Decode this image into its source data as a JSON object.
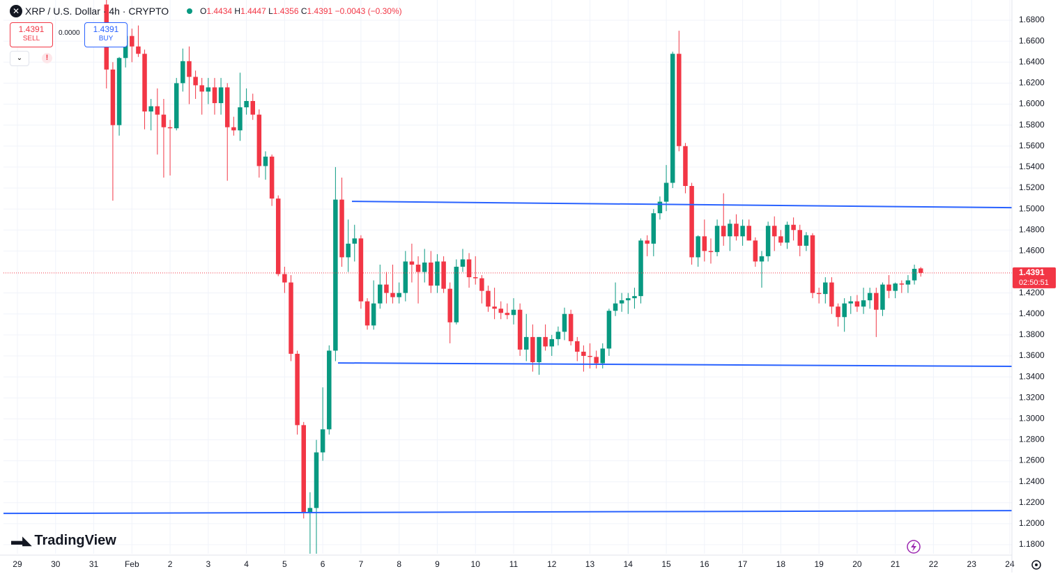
{
  "header": {
    "symbol": "XRP / U.S. Dollar · 4h · CRYPTO",
    "open_label": "O",
    "open": "1.4434",
    "high_label": "H",
    "high": "1.4447",
    "low_label": "L",
    "low": "1.4356",
    "close_label": "C",
    "close": "1.4391",
    "change": "−0.0043 (−0.30%)"
  },
  "trade": {
    "sell_price": "1.4391",
    "sell_label": "SELL",
    "spread": "0.0000",
    "buy_price": "1.4391",
    "buy_label": "BUY"
  },
  "logo": "TradingView",
  "chart_data": {
    "type": "candlestick",
    "x": [
      31.333,
      31.5,
      31.667,
      31.833,
      32,
      32.167,
      32.333,
      32.5,
      32.667,
      32.833,
      33,
      33.167,
      33.333,
      33.5,
      33.667,
      33.833,
      34,
      34.167,
      34.333,
      34.5,
      34.667,
      34.833,
      35,
      35.167,
      35.333,
      35.5,
      35.667,
      35.833,
      36,
      36.167,
      36.333,
      36.5,
      36.667,
      36.833,
      37,
      37.167,
      37.333,
      37.5,
      37.667,
      37.833,
      38,
      38.167,
      38.333,
      38.5,
      38.667,
      38.833,
      39,
      39.167,
      39.333,
      39.5,
      39.667,
      39.833,
      40,
      40.167,
      40.333,
      40.5,
      40.667,
      40.833,
      41,
      41.167,
      41.333,
      41.5,
      41.667,
      41.833,
      42,
      42.167,
      42.333,
      42.5,
      42.667,
      42.833,
      43,
      43.167,
      43.333,
      43.5,
      43.667,
      43.833,
      44,
      44.167,
      44.333,
      44.5,
      44.667,
      44.833,
      45,
      45.167,
      45.333,
      45.5,
      45.667,
      45.833,
      46,
      46.167,
      46.333,
      46.5,
      46.667,
      46.833,
      47,
      47.167,
      47.333,
      47.5,
      47.667,
      47.833,
      48,
      48.167,
      48.333,
      48.5,
      48.667,
      48.833,
      49,
      49.167,
      49.333,
      49.5,
      49.667,
      49.833,
      50,
      50.167,
      50.333,
      50.5,
      50.667,
      50.833,
      51,
      51.167,
      51.333,
      51.5,
      51.667,
      51.833,
      52,
      52.167,
      52.333,
      52.5,
      52.667
    ],
    "open": [
      1.695,
      1.633,
      1.58,
      1.644,
      1.665,
      1.655,
      1.648,
      1.593,
      1.598,
      1.59,
      1.578,
      1.577,
      1.62,
      1.641,
      1.626,
      1.618,
      1.612,
      1.616,
      1.601,
      1.616,
      1.578,
      1.575,
      1.597,
      1.603,
      1.59,
      1.541,
      1.55,
      1.51,
      1.438,
      1.43,
      1.362,
      1.294,
      1.21,
      1.215,
      1.268,
      1.29,
      1.365,
      1.509,
      1.454,
      1.467,
      1.472,
      1.412,
      1.389,
      1.41,
      1.428,
      1.42,
      1.416,
      1.42,
      1.45,
      1.447,
      1.44,
      1.449,
      1.427,
      1.45,
      1.424,
      1.392,
      1.445,
      1.452,
      1.435,
      1.434,
      1.422,
      1.407,
      1.405,
      1.401,
      1.399,
      1.404,
      1.366,
      1.378,
      1.354,
      1.378,
      1.369,
      1.376,
      1.383,
      1.4,
      1.374,
      1.364,
      1.36,
      1.359,
      1.353,
      1.367,
      1.403,
      1.41,
      1.413,
      1.415,
      1.417,
      1.47,
      1.467,
      1.496,
      1.507,
      1.525,
      1.648,
      1.56,
      1.522,
      1.454,
      1.474,
      1.46,
      1.459,
      1.484,
      1.474,
      1.486,
      1.474,
      1.484,
      1.47,
      1.45,
      1.455,
      1.484,
      1.474,
      1.468,
      1.485,
      1.48,
      1.465,
      1.475,
      1.42,
      1.419,
      1.43,
      1.407,
      1.397,
      1.41,
      1.412,
      1.407,
      1.413,
      1.42,
      1.404,
      1.428,
      1.422,
      1.429,
      1.428,
      1.432,
      1.4434
    ],
    "high": [
      1.71,
      1.64,
      1.645,
      1.674,
      1.672,
      1.675,
      1.652,
      1.605,
      1.615,
      1.605,
      1.585,
      1.625,
      1.653,
      1.655,
      1.632,
      1.625,
      1.625,
      1.625,
      1.625,
      1.62,
      1.588,
      1.63,
      1.615,
      1.61,
      1.595,
      1.555,
      1.552,
      1.513,
      1.445,
      1.437,
      1.365,
      1.297,
      1.23,
      1.28,
      1.33,
      1.37,
      1.54,
      1.53,
      1.49,
      1.485,
      1.475,
      1.415,
      1.432,
      1.447,
      1.44,
      1.447,
      1.43,
      1.46,
      1.467,
      1.455,
      1.462,
      1.46,
      1.457,
      1.455,
      1.43,
      1.452,
      1.462,
      1.458,
      1.455,
      1.437,
      1.427,
      1.425,
      1.412,
      1.41,
      1.415,
      1.41,
      1.4,
      1.39,
      1.378,
      1.39,
      1.38,
      1.388,
      1.406,
      1.404,
      1.378,
      1.37,
      1.372,
      1.365,
      1.372,
      1.405,
      1.43,
      1.42,
      1.42,
      1.425,
      1.472,
      1.475,
      1.5,
      1.512,
      1.542,
      1.65,
      1.67,
      1.563,
      1.525,
      1.475,
      1.49,
      1.472,
      1.49,
      1.515,
      1.49,
      1.495,
      1.49,
      1.49,
      1.473,
      1.46,
      1.488,
      1.493,
      1.48,
      1.488,
      1.492,
      1.485,
      1.478,
      1.477,
      1.425,
      1.435,
      1.435,
      1.41,
      1.415,
      1.417,
      1.418,
      1.425,
      1.425,
      1.425,
      1.43,
      1.437,
      1.43,
      1.432,
      1.437,
      1.447,
      1.4447
    ],
    "low": [
      1.615,
      1.508,
      1.57,
      1.635,
      1.64,
      1.645,
      1.576,
      1.575,
      1.552,
      1.53,
      1.532,
      1.575,
      1.612,
      1.6,
      1.605,
      1.59,
      1.6,
      1.59,
      1.59,
      1.527,
      1.57,
      1.565,
      1.59,
      1.585,
      1.53,
      1.528,
      1.503,
      1.436,
      1.42,
      1.355,
      1.285,
      1.205,
      1.17,
      1.168,
      1.26,
      1.285,
      1.355,
      1.445,
      1.44,
      1.45,
      1.405,
      1.385,
      1.385,
      1.405,
      1.41,
      1.41,
      1.41,
      1.412,
      1.43,
      1.41,
      1.43,
      1.42,
      1.42,
      1.42,
      1.372,
      1.39,
      1.44,
      1.425,
      1.428,
      1.41,
      1.402,
      1.395,
      1.395,
      1.395,
      1.39,
      1.36,
      1.355,
      1.345,
      1.342,
      1.365,
      1.36,
      1.37,
      1.375,
      1.37,
      1.355,
      1.345,
      1.348,
      1.348,
      1.348,
      1.36,
      1.398,
      1.402,
      1.4,
      1.405,
      1.41,
      1.455,
      1.455,
      1.49,
      1.498,
      1.52,
      1.555,
      1.515,
      1.447,
      1.445,
      1.45,
      1.448,
      1.455,
      1.465,
      1.46,
      1.47,
      1.465,
      1.47,
      1.445,
      1.425,
      1.45,
      1.46,
      1.465,
      1.462,
      1.47,
      1.455,
      1.46,
      1.415,
      1.41,
      1.41,
      1.4,
      1.388,
      1.383,
      1.4,
      1.402,
      1.4,
      1.405,
      1.378,
      1.398,
      1.415,
      1.415,
      1.42,
      1.42,
      1.428,
      1.4356
    ],
    "close": [
      1.633,
      1.58,
      1.644,
      1.665,
      1.655,
      1.648,
      1.593,
      1.598,
      1.59,
      1.578,
      1.577,
      1.62,
      1.641,
      1.626,
      1.618,
      1.612,
      1.616,
      1.601,
      1.616,
      1.578,
      1.575,
      1.597,
      1.603,
      1.59,
      1.541,
      1.55,
      1.51,
      1.438,
      1.43,
      1.362,
      1.294,
      1.21,
      1.215,
      1.268,
      1.29,
      1.365,
      1.509,
      1.454,
      1.467,
      1.472,
      1.412,
      1.389,
      1.41,
      1.428,
      1.42,
      1.416,
      1.42,
      1.45,
      1.447,
      1.44,
      1.449,
      1.427,
      1.45,
      1.424,
      1.392,
      1.445,
      1.452,
      1.435,
      1.434,
      1.422,
      1.407,
      1.405,
      1.401,
      1.399,
      1.404,
      1.366,
      1.378,
      1.354,
      1.378,
      1.369,
      1.376,
      1.383,
      1.4,
      1.374,
      1.364,
      1.36,
      1.359,
      1.353,
      1.367,
      1.403,
      1.41,
      1.413,
      1.415,
      1.417,
      1.47,
      1.467,
      1.496,
      1.507,
      1.525,
      1.648,
      1.56,
      1.522,
      1.454,
      1.474,
      1.46,
      1.459,
      1.484,
      1.474,
      1.486,
      1.474,
      1.484,
      1.47,
      1.45,
      1.455,
      1.484,
      1.474,
      1.468,
      1.485,
      1.48,
      1.465,
      1.475,
      1.42,
      1.419,
      1.43,
      1.407,
      1.397,
      1.41,
      1.412,
      1.407,
      1.413,
      1.42,
      1.404,
      1.428,
      1.422,
      1.429,
      1.428,
      1.432,
      1.443,
      1.4391
    ],
    "up_color": "#089981",
    "down_color": "#f23645",
    "xlim": [
      28.635,
      55.055
    ],
    "ylim": [
      1.1714,
      1.6993
    ],
    "xticks": [
      29,
      30,
      31,
      {
        "value": 32,
        "label": "Feb"
      },
      {
        "value": 33,
        "label": "2"
      },
      {
        "value": 34,
        "label": "3"
      },
      {
        "value": 35,
        "label": "4"
      },
      {
        "value": 36,
        "label": "5"
      },
      {
        "value": 37,
        "label": "6"
      },
      {
        "value": 38,
        "label": "7"
      },
      {
        "value": 39,
        "label": "8"
      },
      {
        "value": 40,
        "label": "9"
      },
      {
        "value": 41,
        "label": "10"
      },
      {
        "value": 42,
        "label": "11"
      },
      {
        "value": 43,
        "label": "12"
      },
      {
        "value": 44,
        "label": "13"
      },
      {
        "value": 45,
        "label": "14"
      },
      {
        "value": 46,
        "label": "15"
      },
      {
        "value": 47,
        "label": "16"
      },
      {
        "value": 48,
        "label": "17"
      },
      {
        "value": 49,
        "label": "18"
      },
      {
        "value": 50,
        "label": "19"
      },
      {
        "value": 51,
        "label": "20"
      },
      {
        "value": 52,
        "label": "21"
      },
      {
        "value": 53,
        "label": "22"
      },
      {
        "value": 54,
        "label": "23"
      },
      {
        "value": 55,
        "label": "24"
      }
    ],
    "yticks": [
      {
        "value": 1.68,
        "label": "1.6800"
      },
      {
        "value": 1.66,
        "label": "1.6600"
      },
      {
        "value": 1.64,
        "label": "1.6400"
      },
      {
        "value": 1.62,
        "label": "1.6200"
      },
      {
        "value": 1.6,
        "label": "1.6000"
      },
      {
        "value": 1.58,
        "label": "1.5800"
      },
      {
        "value": 1.56,
        "label": "1.5600"
      },
      {
        "value": 1.54,
        "label": "1.5400"
      },
      {
        "value": 1.52,
        "label": "1.5200"
      },
      {
        "value": 1.5,
        "label": "1.5000"
      },
      {
        "value": 1.48,
        "label": "1.4800"
      },
      {
        "value": 1.46,
        "label": "1.4600"
      },
      {
        "value": 1.42,
        "label": "1.4200"
      },
      {
        "value": 1.4,
        "label": "1.4000"
      },
      {
        "value": 1.38,
        "label": "1.3800"
      },
      {
        "value": 1.36,
        "label": "1.3600"
      },
      {
        "value": 1.34,
        "label": "1.3400"
      },
      {
        "value": 1.32,
        "label": "1.3200"
      },
      {
        "value": 1.3,
        "label": "1.3000"
      },
      {
        "value": 1.28,
        "label": "1.2800"
      },
      {
        "value": 1.26,
        "label": "1.2600"
      },
      {
        "value": 1.24,
        "label": "1.2400"
      },
      {
        "value": 1.22,
        "label": "1.2200"
      },
      {
        "value": 1.2,
        "label": "1.2000"
      },
      {
        "value": 1.18,
        "label": "1.1800"
      }
    ],
    "grid": true,
    "trend_lines": [
      {
        "color": "#2962ff",
        "x": [
          37.764,
          55.055
        ],
        "y": [
          1.5073,
          1.5013
        ]
      },
      {
        "color": "#2962ff",
        "x": [
          37.399,
          55.055
        ],
        "y": [
          1.3533,
          1.35
        ]
      },
      {
        "color": "#2962ff",
        "x": [
          28.635,
          55.055
        ],
        "y": [
          1.2098,
          1.2125
        ]
      }
    ],
    "last_price": 1.4391,
    "last_price_color": "#f23645",
    "countdown": "02:50:51"
  }
}
